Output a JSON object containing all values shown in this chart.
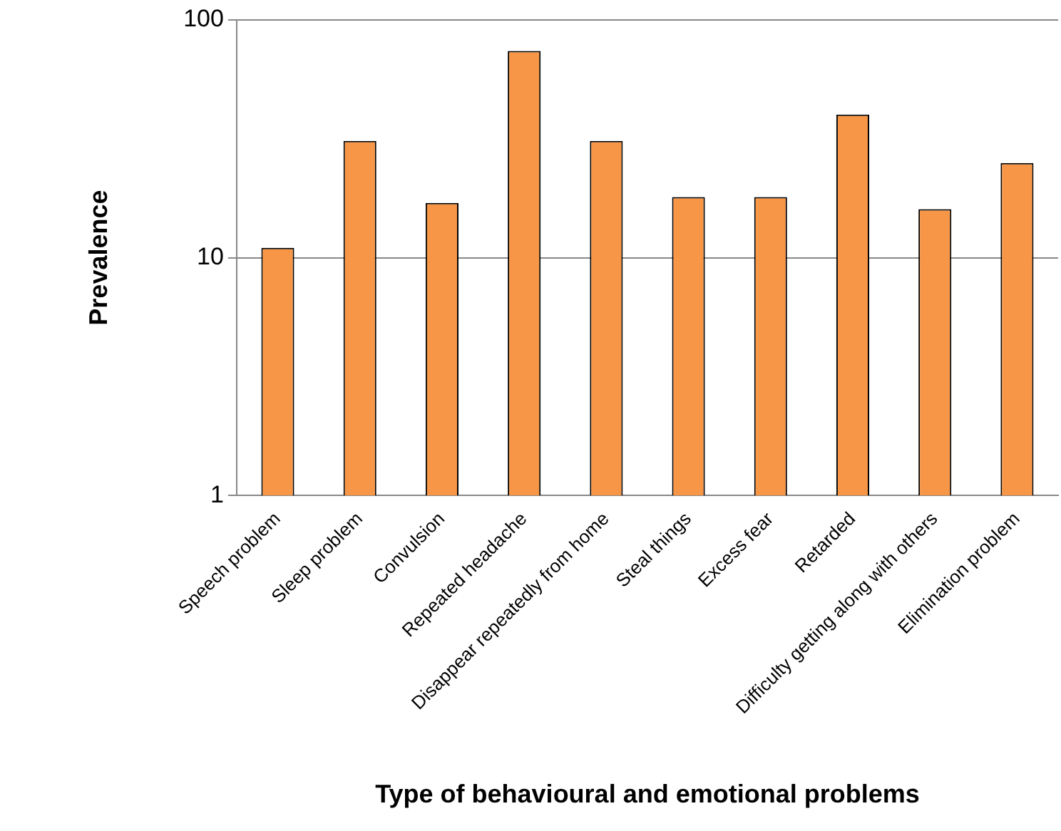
{
  "chart_data": {
    "type": "bar",
    "xlabel": "Type of behavioural and emotional problems",
    "ylabel": "Prevalence",
    "categories": [
      "Speech problem",
      "Sleep problem",
      "Convulsion",
      "Repeated headache",
      "Disappear repeatedly from home",
      "Steal things",
      "Excess fear",
      "Retarded",
      "Difficulty getting along with others",
      "Elimination problem"
    ],
    "values": [
      11,
      31,
      17,
      74,
      31,
      18,
      18,
      40,
      16,
      25
    ],
    "color": "#f79646",
    "log": "y",
    "ylim": [
      1,
      100
    ],
    "yticks": [
      1,
      10,
      100
    ],
    "grid": "y",
    "legend": false
  }
}
